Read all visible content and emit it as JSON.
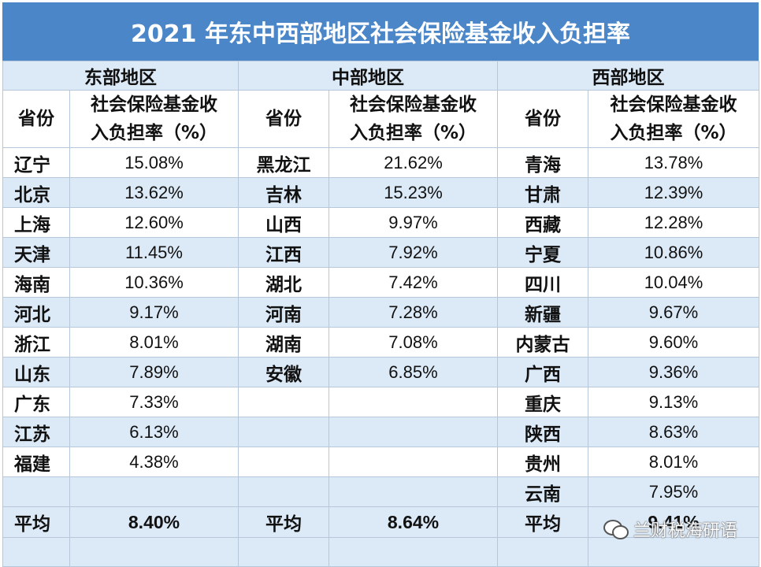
{
  "title": "2021 年东中西部地区社会保险基金收入负担率",
  "regions": [
    "东部地区",
    "中部地区",
    "西部地区"
  ],
  "headers": {
    "province": "省份",
    "rate_line1": "社会保险基金收",
    "rate_line2": "入负担率（%）"
  },
  "rows": [
    {
      "e_p": "辽宁",
      "e_v": "15.08%",
      "c_p": "黑龙江",
      "c_v": "21.62%",
      "w_p": "青海",
      "w_v": "13.78%"
    },
    {
      "e_p": "北京",
      "e_v": "13.62%",
      "c_p": "吉林",
      "c_v": "15.23%",
      "w_p": "甘肃",
      "w_v": "12.39%"
    },
    {
      "e_p": "上海",
      "e_v": "12.60%",
      "c_p": "山西",
      "c_v": "9.97%",
      "w_p": "西藏",
      "w_v": "12.28%"
    },
    {
      "e_p": "天津",
      "e_v": "11.45%",
      "c_p": "江西",
      "c_v": "7.92%",
      "w_p": "宁夏",
      "w_v": "10.86%"
    },
    {
      "e_p": "海南",
      "e_v": "10.36%",
      "c_p": "湖北",
      "c_v": "7.42%",
      "w_p": "四川",
      "w_v": "10.04%"
    },
    {
      "e_p": "河北",
      "e_v": "9.17%",
      "c_p": "河南",
      "c_v": "7.28%",
      "w_p": "新疆",
      "w_v": "9.67%"
    },
    {
      "e_p": "浙江",
      "e_v": "8.01%",
      "c_p": "湖南",
      "c_v": "7.08%",
      "w_p": "内蒙古",
      "w_v": "9.60%"
    },
    {
      "e_p": "山东",
      "e_v": "7.89%",
      "c_p": "安徽",
      "c_v": "6.85%",
      "w_p": "广西",
      "w_v": "9.36%"
    },
    {
      "e_p": "广东",
      "e_v": "7.33%",
      "c_p": "",
      "c_v": "",
      "w_p": "重庆",
      "w_v": "9.13%"
    },
    {
      "e_p": "江苏",
      "e_v": "6.13%",
      "c_p": "",
      "c_v": "",
      "w_p": "陕西",
      "w_v": "8.63%"
    },
    {
      "e_p": "福建",
      "e_v": "4.38%",
      "c_p": "",
      "c_v": "",
      "w_p": "贵州",
      "w_v": "8.01%"
    },
    {
      "e_p": "",
      "e_v": "",
      "c_p": "",
      "c_v": "",
      "w_p": "云南",
      "w_v": "7.95%"
    }
  ],
  "average": {
    "label": "平均",
    "east": "8.40%",
    "central": "8.64%",
    "west": "9.41%"
  },
  "watermark": "兰财税海研语"
}
